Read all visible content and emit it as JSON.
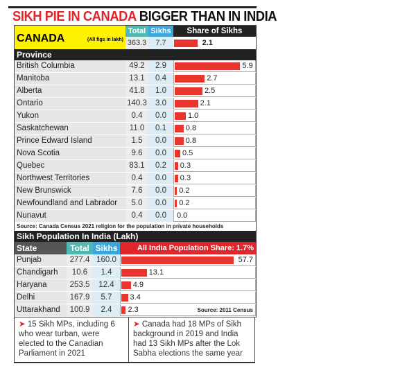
{
  "title": {
    "part1": "SIKH PIE IN CANADA",
    "part2": "BIGGER THAN IN INDIA"
  },
  "canada": {
    "label": "CANADA",
    "unit_note": "(All figs in lakh)",
    "total_header": "Total",
    "sikhs_header": "Sikhs",
    "share_header": "Share of Sikhs",
    "total": "363.3",
    "sikhs": "7.7",
    "share": 2.1,
    "province_header": "Province",
    "source": "Source: Canada Census 2021 religion for the population in private households"
  },
  "india": {
    "section_title": "Sikh Population In India (Lakh)",
    "state_header": "State",
    "total_header": "Total",
    "sikhs_header": "Sikhs",
    "share_header": "All India Population Share: 1.7%",
    "source": "Source: 2011 Census"
  },
  "notes": [
    "15 Sikh MPs, including 6 who wear turban, were elected to the Canadian Parliament in 2021",
    "Canada had 18 MPs of Sikh background in 2019 and India had 13 Sikh MPs after the Lok Sabha elections the same year"
  ],
  "chart_data": [
    {
      "type": "bar",
      "title": "Canada - Share of Sikhs (%)",
      "categories": [
        "British Columbia",
        "Manitoba",
        "Alberta",
        "Ontario",
        "Yukon",
        "Saskatchewan",
        "Prince Edward Island",
        "Nova Scotia",
        "Quebec",
        "Northwest Territories",
        "New Brunswick",
        "Newfoundland and Labrador",
        "Nunavut"
      ],
      "total": [
        "49.2",
        "13.1",
        "41.8",
        "140.3",
        "0.4",
        "11.0",
        "1.5",
        "9.6",
        "83.1",
        "0.4",
        "7.6",
        "5.0",
        "0.4"
      ],
      "sikhs": [
        "2.9",
        "0.4",
        "1.0",
        "3.0",
        "0.0",
        "0.1",
        "0.0",
        "0.0",
        "0.2",
        "0.0",
        "0.0",
        "0.0",
        "0.0"
      ],
      "values": [
        5.9,
        2.7,
        2.5,
        2.1,
        1.0,
        0.8,
        0.8,
        0.5,
        0.3,
        0.3,
        0.2,
        0.2,
        0.0
      ]
    },
    {
      "type": "bar",
      "title": "India - Sikh share (%)",
      "categories": [
        "Punjab",
        "Chandigarh",
        "Haryana",
        "Delhi",
        "Uttarakhand"
      ],
      "total": [
        "277.4",
        "10.6",
        "253.5",
        "167.9",
        "100.9"
      ],
      "sikhs": [
        "160.0",
        "1.4",
        "12.4",
        "5.7",
        "2.4"
      ],
      "values": [
        57.7,
        13.1,
        4.9,
        3.4,
        2.3
      ]
    }
  ],
  "colors": {
    "red": "#e1262b",
    "teal": "#4fb8b2",
    "blue": "#3ba6dd",
    "yellow": "#fff200"
  }
}
